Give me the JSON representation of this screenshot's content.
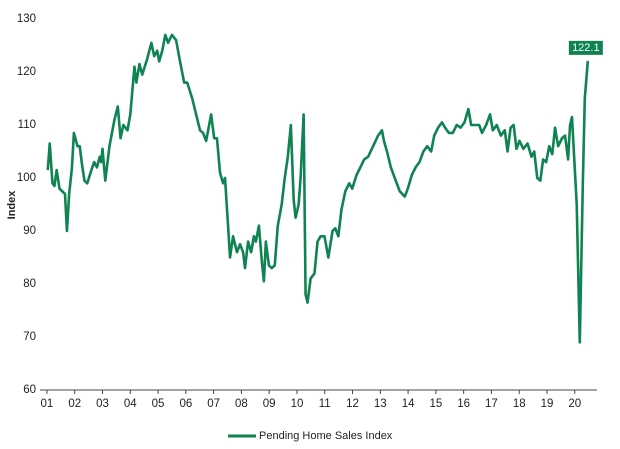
{
  "chart_data": {
    "type": "line",
    "ylabel": "Index",
    "x": [
      2001.03,
      2001.1,
      2001.2,
      2001.27,
      2001.35,
      2001.45,
      2001.55,
      2001.65,
      2001.72,
      2001.8,
      2001.9,
      2001.97,
      2002.1,
      2002.18,
      2002.25,
      2002.35,
      2002.45,
      2002.6,
      2002.7,
      2002.8,
      2002.9,
      2002.95,
      2003.0,
      2003.1,
      2003.25,
      2003.43,
      2003.55,
      2003.65,
      2003.75,
      2003.9,
      2004.0,
      2004.15,
      2004.22,
      2004.33,
      2004.43,
      2004.61,
      2004.76,
      2004.86,
      2004.97,
      2005.04,
      2005.15,
      2005.26,
      2005.36,
      2005.5,
      2005.65,
      2005.79,
      2005.94,
      2006.05,
      2006.23,
      2006.37,
      2006.51,
      2006.62,
      2006.73,
      2006.91,
      2007.02,
      2007.12,
      2007.23,
      2007.34,
      2007.41,
      2007.52,
      2007.59,
      2007.7,
      2007.84,
      2007.95,
      2008.06,
      2008.13,
      2008.24,
      2008.35,
      2008.45,
      2008.52,
      2008.63,
      2008.74,
      2008.81,
      2008.88,
      2008.99,
      2009.09,
      2009.2,
      2009.31,
      2009.45,
      2009.56,
      2009.67,
      2009.78,
      2009.88,
      2009.95,
      2010.06,
      2010.13,
      2010.24,
      2010.31,
      2010.38,
      2010.49,
      2010.63,
      2010.74,
      2010.85,
      2010.99,
      2011.13,
      2011.28,
      2011.38,
      2011.49,
      2011.6,
      2011.74,
      2011.88,
      2011.99,
      2012.14,
      2012.28,
      2012.42,
      2012.56,
      2012.74,
      2012.92,
      2013.06,
      2013.13,
      2013.24,
      2013.38,
      2013.52,
      2013.7,
      2013.88,
      2013.99,
      2014.13,
      2014.27,
      2014.41,
      2014.55,
      2014.69,
      2014.83,
      2014.94,
      2015.08,
      2015.22,
      2015.33,
      2015.47,
      2015.61,
      2015.75,
      2015.89,
      2016.03,
      2016.17,
      2016.27,
      2016.42,
      2016.56,
      2016.66,
      2016.81,
      2016.95,
      2017.05,
      2017.19,
      2017.34,
      2017.48,
      2017.58,
      2017.69,
      2017.8,
      2017.9,
      2018.01,
      2018.15,
      2018.3,
      2018.44,
      2018.54,
      2018.65,
      2018.76,
      2018.86,
      2018.97,
      2019.08,
      2019.19,
      2019.29,
      2019.4,
      2019.54,
      2019.65,
      2019.76,
      2019.83,
      2019.9,
      2020.07,
      2020.18,
      2020.29,
      2020.36,
      2020.47
    ],
    "series": [
      {
        "name": "Pending Home Sales Index",
        "color": "#0f8352",
        "values": [
          101.5,
          106.5,
          99,
          98.5,
          101.5,
          98,
          97.5,
          97,
          90,
          97,
          102,
          108.5,
          106,
          106,
          103,
          99.5,
          99,
          101.5,
          103,
          102,
          104,
          103,
          105.5,
          99.5,
          106,
          111,
          113.5,
          107.5,
          110,
          109,
          112,
          121,
          118,
          121.5,
          119.5,
          122.5,
          125.5,
          123,
          124,
          122,
          124,
          127,
          125.5,
          127,
          126,
          122,
          118,
          118,
          115,
          112,
          109,
          108.5,
          107,
          112,
          107.5,
          107.5,
          101,
          99,
          100,
          91,
          85,
          89,
          86,
          87.5,
          86,
          83,
          88,
          86,
          89,
          88,
          91,
          84,
          80.5,
          88,
          83.5,
          83,
          83.5,
          91,
          95,
          100,
          104,
          110,
          96,
          92.5,
          95,
          100,
          112,
          78,
          76.5,
          81,
          82,
          88,
          89,
          89,
          85,
          90,
          90.5,
          89,
          94,
          97.5,
          99,
          98,
          100.5,
          102,
          103.5,
          104,
          106,
          108,
          109,
          107,
          105,
          102,
          100,
          97.5,
          96.5,
          98,
          100.5,
          102,
          103,
          105,
          106,
          105,
          108,
          109.5,
          110.5,
          109.5,
          108.5,
          108.5,
          110,
          109.5,
          110.5,
          113,
          110,
          110,
          110,
          108.5,
          110,
          112,
          109,
          110,
          108,
          109,
          105,
          109.5,
          110,
          105.5,
          107,
          105.5,
          106.5,
          104,
          105,
          100,
          99.5,
          103.5,
          103,
          106,
          104.5,
          109.5,
          106,
          107.5,
          108,
          103.5,
          110,
          111.5,
          95,
          69,
          99,
          115,
          122.1
        ]
      }
    ],
    "xlim": [
      2000.75,
      2020.8
    ],
    "xticks": [
      {
        "value": 2001,
        "label": "01"
      },
      {
        "value": 2002,
        "label": "02"
      },
      {
        "value": 2003,
        "label": "03"
      },
      {
        "value": 2004,
        "label": "04"
      },
      {
        "value": 2005,
        "label": "05"
      },
      {
        "value": 2006,
        "label": "06"
      },
      {
        "value": 2007,
        "label": "07"
      },
      {
        "value": 2008,
        "label": "08"
      },
      {
        "value": 2009,
        "label": "09"
      },
      {
        "value": 2010,
        "label": "10"
      },
      {
        "value": 2011,
        "label": "11"
      },
      {
        "value": 2012,
        "label": "12"
      },
      {
        "value": 2013,
        "label": "13"
      },
      {
        "value": 2014,
        "label": "14"
      },
      {
        "value": 2015,
        "label": "15"
      },
      {
        "value": 2016,
        "label": "16"
      },
      {
        "value": 2017,
        "label": "17"
      },
      {
        "value": 2018,
        "label": "18"
      },
      {
        "value": 2019,
        "label": "19"
      },
      {
        "value": 2020,
        "label": "20"
      }
    ],
    "ylim": [
      60,
      130
    ],
    "yticks": [
      60,
      70,
      80,
      90,
      100,
      110,
      120,
      130
    ],
    "grid": false,
    "legend": "bottom"
  }
}
